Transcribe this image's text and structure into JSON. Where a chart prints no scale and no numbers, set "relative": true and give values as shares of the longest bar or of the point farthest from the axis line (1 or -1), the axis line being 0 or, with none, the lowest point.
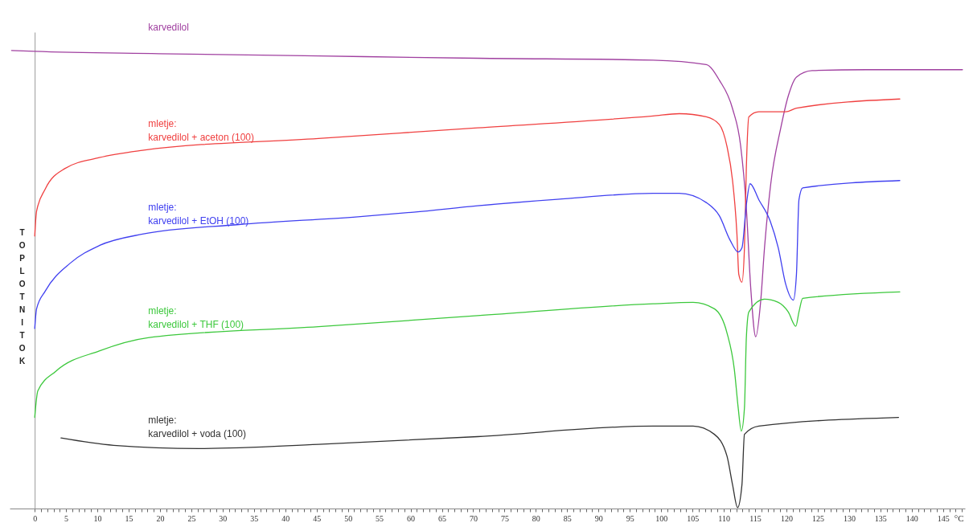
{
  "chart_data": {
    "type": "line",
    "relative": true,
    "xlabel": "°C",
    "ylabel": "TOPLOTNI TOK",
    "xlim": [
      -4,
      148.5
    ],
    "xticks": [
      0,
      5,
      10,
      15,
      20,
      25,
      30,
      35,
      40,
      45,
      50,
      55,
      60,
      65,
      70,
      75,
      80,
      85,
      90,
      95,
      100,
      105,
      110,
      115,
      120,
      125,
      130,
      135,
      140,
      145,
      {
        "value": 1,
        "label": null
      },
      {
        "value": 2,
        "label": null
      },
      {
        "value": 3,
        "label": null
      },
      {
        "value": 4,
        "label": null
      },
      {
        "value": 6,
        "label": null
      },
      {
        "value": 7,
        "label": null
      },
      {
        "value": 8,
        "label": null
      },
      {
        "value": 9,
        "label": null
      },
      {
        "value": 11,
        "label": null
      },
      {
        "value": 12,
        "label": null
      },
      {
        "value": 13,
        "label": null
      },
      {
        "value": 14,
        "label": null
      },
      {
        "value": 16,
        "label": null
      },
      {
        "value": 17,
        "label": null
      },
      {
        "value": 18,
        "label": null
      },
      {
        "value": 19,
        "label": null
      },
      {
        "value": 21,
        "label": null
      },
      {
        "value": 22,
        "label": null
      },
      {
        "value": 23,
        "label": null
      },
      {
        "value": 24,
        "label": null
      },
      {
        "value": 26,
        "label": null
      },
      {
        "value": 27,
        "label": null
      },
      {
        "value": 28,
        "label": null
      },
      {
        "value": 29,
        "label": null
      },
      {
        "value": 31,
        "label": null
      },
      {
        "value": 32,
        "label": null
      },
      {
        "value": 33,
        "label": null
      },
      {
        "value": 34,
        "label": null
      },
      {
        "value": 36,
        "label": null
      },
      {
        "value": 37,
        "label": null
      },
      {
        "value": 38,
        "label": null
      },
      {
        "value": 39,
        "label": null
      },
      {
        "value": 41,
        "label": null
      },
      {
        "value": 42,
        "label": null
      },
      {
        "value": 43,
        "label": null
      },
      {
        "value": 44,
        "label": null
      },
      {
        "value": 46,
        "label": null
      },
      {
        "value": 47,
        "label": null
      },
      {
        "value": 48,
        "label": null
      },
      {
        "value": 49,
        "label": null
      },
      {
        "value": 51,
        "label": null
      },
      {
        "value": 52,
        "label": null
      },
      {
        "value": 53,
        "label": null
      },
      {
        "value": 54,
        "label": null
      },
      {
        "value": 56,
        "label": null
      },
      {
        "value": 57,
        "label": null
      },
      {
        "value": 58,
        "label": null
      },
      {
        "value": 59,
        "label": null
      },
      {
        "value": 61,
        "label": null
      },
      {
        "value": 62,
        "label": null
      },
      {
        "value": 63,
        "label": null
      },
      {
        "value": 64,
        "label": null
      },
      {
        "value": 66,
        "label": null
      },
      {
        "value": 67,
        "label": null
      },
      {
        "value": 68,
        "label": null
      },
      {
        "value": 69,
        "label": null
      },
      {
        "value": 71,
        "label": null
      },
      {
        "value": 72,
        "label": null
      },
      {
        "value": 73,
        "label": null
      },
      {
        "value": 74,
        "label": null
      },
      {
        "value": 76,
        "label": null
      },
      {
        "value": 77,
        "label": null
      },
      {
        "value": 78,
        "label": null
      },
      {
        "value": 79,
        "label": null
      },
      {
        "value": 81,
        "label": null
      },
      {
        "value": 82,
        "label": null
      },
      {
        "value": 83,
        "label": null
      },
      {
        "value": 84,
        "label": null
      },
      {
        "value": 86,
        "label": null
      },
      {
        "value": 87,
        "label": null
      },
      {
        "value": 88,
        "label": null
      },
      {
        "value": 89,
        "label": null
      },
      {
        "value": 91,
        "label": null
      },
      {
        "value": 92,
        "label": null
      },
      {
        "value": 93,
        "label": null
      },
      {
        "value": 94,
        "label": null
      },
      {
        "value": 96,
        "label": null
      },
      {
        "value": 97,
        "label": null
      },
      {
        "value": 98,
        "label": null
      },
      {
        "value": 99,
        "label": null
      },
      {
        "value": 101,
        "label": null
      },
      {
        "value": 102,
        "label": null
      },
      {
        "value": 103,
        "label": null
      },
      {
        "value": 104,
        "label": null
      },
      {
        "value": 106,
        "label": null
      },
      {
        "value": 107,
        "label": null
      },
      {
        "value": 108,
        "label": null
      },
      {
        "value": 109,
        "label": null
      },
      {
        "value": 111,
        "label": null
      },
      {
        "value": 112,
        "label": null
      },
      {
        "value": 113,
        "label": null
      },
      {
        "value": 114,
        "label": null
      },
      {
        "value": 116,
        "label": null
      },
      {
        "value": 117,
        "label": null
      },
      {
        "value": 118,
        "label": null
      },
      {
        "value": 119,
        "label": null
      },
      {
        "value": 121,
        "label": null
      },
      {
        "value": 122,
        "label": null
      },
      {
        "value": 123,
        "label": null
      },
      {
        "value": 124,
        "label": null
      },
      {
        "value": 126,
        "label": null
      },
      {
        "value": 127,
        "label": null
      },
      {
        "value": 128,
        "label": null
      },
      {
        "value": 129,
        "label": null
      },
      {
        "value": 131,
        "label": null
      },
      {
        "value": 132,
        "label": null
      },
      {
        "value": 133,
        "label": null
      },
      {
        "value": 134,
        "label": null
      },
      {
        "value": 136,
        "label": null
      },
      {
        "value": 137,
        "label": null
      },
      {
        "value": 138,
        "label": null
      },
      {
        "value": 139,
        "label": null
      },
      {
        "value": 141,
        "label": null
      },
      {
        "value": 142,
        "label": null
      },
      {
        "value": 143,
        "label": null
      },
      {
        "value": 144,
        "label": null
      },
      {
        "value": 146,
        "label": null
      },
      {
        "value": 147,
        "label": null
      },
      {
        "value": 148,
        "label": null
      }
    ],
    "series": [
      {
        "name": "karvedilol",
        "color": "#a040a0",
        "x": [
          -3.7,
          0,
          19.8,
          45.3,
          70.7,
          98.7,
          107.2,
          109.3,
          111.4,
          112.7,
          113.6,
          114.3,
          115.1,
          115.9,
          116.5,
          117.5,
          119.1,
          120.3,
          121.6,
          124.1,
          132.7,
          148.1
        ],
        "values": [
          1.0,
          0.998,
          0.993,
          0.988,
          0.983,
          0.979,
          0.969,
          0.935,
          0.873,
          0.791,
          0.656,
          0.482,
          0.375,
          0.454,
          0.569,
          0.709,
          0.831,
          0.901,
          0.942,
          0.956,
          0.958,
          0.958
        ]
      },
      {
        "name": "mletje:\nkarvedilol + aceton (100)",
        "color": "#f04040",
        "x": [
          0,
          0.3,
          1.7,
          4.8,
          10.3,
          17.2,
          45.3,
          70.7,
          98.7,
          102.9,
          107.2,
          109.3,
          110.5,
          111.4,
          112.1,
          112.4,
          112.9,
          113.3,
          113.6,
          114.0,
          115.6,
          119.9,
          121.6,
          138.1
        ],
        "values": [
          0.595,
          0.649,
          0.698,
          0.742,
          0.766,
          0.782,
          0.808,
          0.831,
          0.857,
          0.862,
          0.855,
          0.838,
          0.791,
          0.716,
          0.599,
          0.511,
          0.494,
          0.569,
          0.743,
          0.855,
          0.866,
          0.866,
          0.874,
          0.894
        ]
      },
      {
        "name": "mletje:\nkarvedilol + EtOH (100)",
        "color": "#4040f0",
        "x": [
          0,
          0.3,
          1.7,
          5.7,
          10.3,
          17.2,
          32.6,
          51.6,
          60.5,
          70.7,
          83.4,
          98.7,
          102.9,
          107.2,
          109.3,
          111.0,
          112.3,
          112.9,
          113.6,
          114.2,
          115.6,
          117.4,
          118.7,
          119.9,
          121.1,
          121.6,
          122.0,
          122.6,
          138.1
        ],
        "values": [
          0.393,
          0.436,
          0.475,
          0.536,
          0.574,
          0.599,
          0.62,
          0.637,
          0.647,
          0.661,
          0.675,
          0.688,
          0.688,
          0.668,
          0.639,
          0.586,
          0.56,
          0.569,
          0.663,
          0.709,
          0.674,
          0.628,
          0.569,
          0.489,
          0.455,
          0.511,
          0.674,
          0.7,
          0.716
        ]
      },
      {
        "name": "mletje:\nkarvedilol + THF (100)",
        "color": "#3cc83c",
        "x": [
          0,
          0.5,
          3.4,
          10.3,
          18.1,
          45.3,
          70.7,
          98.7,
          105.1,
          108.5,
          110.5,
          111.7,
          112.3,
          112.8,
          113.3,
          113.6,
          114.0,
          116.5,
          118.7,
          120.3,
          121.5,
          122.0,
          122.6,
          138.1
        ],
        "values": [
          0.199,
          0.257,
          0.3,
          0.344,
          0.373,
          0.397,
          0.421,
          0.447,
          0.45,
          0.436,
          0.384,
          0.302,
          0.22,
          0.169,
          0.22,
          0.372,
          0.429,
          0.457,
          0.45,
          0.429,
          0.398,
          0.429,
          0.459,
          0.473
        ]
      },
      {
        "name": "mletje:\nkarvedilol + voda (100)",
        "color": "#333333",
        "x": [
          4.2,
          12.6,
          26.2,
          45.3,
          70.7,
          98.7,
          105.1,
          108.5,
          110.5,
          111.4,
          112.2,
          112.9,
          113.3,
          115.6,
          137.9
        ],
        "values": [
          0.154,
          0.138,
          0.131,
          0.14,
          0.157,
          0.18,
          0.18,
          0.162,
          0.115,
          0.052,
          0.002,
          0.052,
          0.162,
          0.18,
          0.199
        ]
      }
    ]
  }
}
